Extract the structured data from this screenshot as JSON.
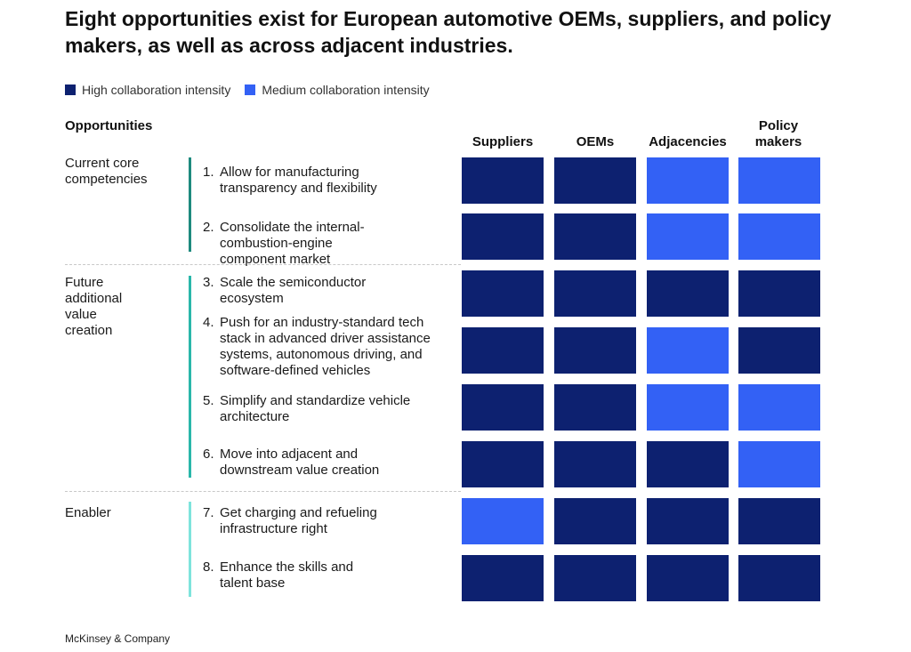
{
  "title": "Eight opportunities exist for European automotive OEMs, suppliers, and policy makers, as well as across adjacent industries.",
  "legend": [
    {
      "label": "High collaboration intensity",
      "color": "#0d2170"
    },
    {
      "label": "Medium collaboration intensity",
      "color": "#3361f5"
    }
  ],
  "opportunities_header": "Opportunities",
  "colors": {
    "high": "#0d2170",
    "medium": "#3361f5",
    "bar_core": "#1e8a7e",
    "bar_future": "#2ab7aa",
    "bar_enabler": "#7ee4dc"
  },
  "chart_data": {
    "type": "heatmap",
    "columns": [
      "Suppliers",
      "OEMs",
      "Adjacencies",
      "Policy makers"
    ],
    "levels": [
      "High collaboration intensity",
      "Medium collaboration intensity"
    ],
    "groups": [
      {
        "label": "Current core competencies",
        "rows": [
          1,
          2
        ]
      },
      {
        "label": "Future additional value creation",
        "rows": [
          3,
          4,
          5,
          6
        ]
      },
      {
        "label": "Enabler",
        "rows": [
          7,
          8
        ]
      }
    ],
    "rows": [
      {
        "num": "1.",
        "label": "Allow for manufacturing transparency and flexibility",
        "values": [
          "high",
          "high",
          "medium",
          "medium"
        ]
      },
      {
        "num": "2.",
        "label": "Consolidate the internal-combustion-engine component market",
        "values": [
          "high",
          "high",
          "medium",
          "medium"
        ]
      },
      {
        "num": "3.",
        "label": "Scale the semiconductor ecosystem",
        "values": [
          "high",
          "high",
          "high",
          "high"
        ]
      },
      {
        "num": "4.",
        "label": "Push for an industry-standard tech stack in advanced driver assistance systems, autonomous driving, and software-defined vehicles",
        "values": [
          "high",
          "high",
          "medium",
          "high"
        ]
      },
      {
        "num": "5.",
        "label": "Simplify and standardize vehicle architecture",
        "values": [
          "high",
          "high",
          "medium",
          "medium"
        ]
      },
      {
        "num": "6.",
        "label": "Move into adjacent and downstream value creation",
        "values": [
          "high",
          "high",
          "high",
          "medium"
        ]
      },
      {
        "num": "7.",
        "label": "Get charging and refueling infrastructure right",
        "values": [
          "medium",
          "high",
          "high",
          "high"
        ]
      },
      {
        "num": "8.",
        "label": "Enhance the skills and talent base",
        "values": [
          "high",
          "high",
          "high",
          "high"
        ]
      }
    ]
  },
  "source": "McKinsey & Company"
}
